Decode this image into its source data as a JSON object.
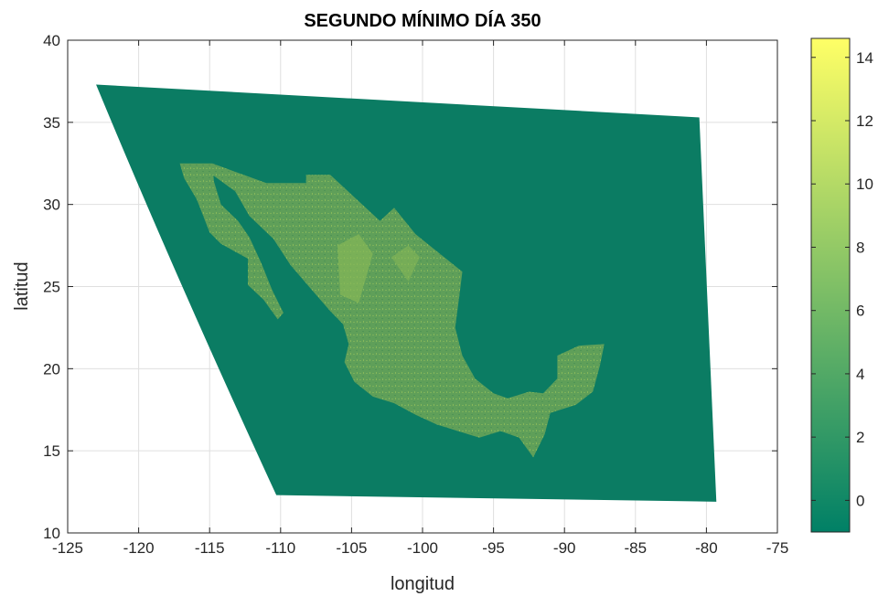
{
  "chart_data": {
    "type": "heatmap",
    "title": "SEGUNDO MÍNIMO DÍA 350",
    "xlabel": "longitud",
    "ylabel": "latitud",
    "xlim": [
      -125,
      -75
    ],
    "ylim": [
      10,
      40
    ],
    "xticks": [
      -125,
      -120,
      -115,
      -110,
      -105,
      -100,
      -95,
      -90,
      -85,
      -80,
      -75
    ],
    "yticks": [
      10,
      15,
      20,
      25,
      30,
      35,
      40
    ],
    "grid": true,
    "colormap": "summer",
    "colorbar": {
      "range": [
        -1,
        14.6
      ],
      "ticks": [
        0,
        2,
        4,
        6,
        8,
        10,
        12,
        14
      ],
      "color_low": "#008066",
      "color_high": "#ffff66"
    },
    "domain_corners": [
      {
        "lon": -123.0,
        "lat": 37.3
      },
      {
        "lon": -80.5,
        "lat": 35.3
      },
      {
        "lon": -79.3,
        "lat": 11.9
      },
      {
        "lon": -110.3,
        "lat": 12.3
      }
    ],
    "background_value": -0.8,
    "land_region": "México",
    "land_value_range": [
      1.5,
      6
    ],
    "colors": {
      "ocean": "#0b7c63",
      "land": "#5c9d58",
      "land_highlight": "#8dbb55"
    }
  }
}
